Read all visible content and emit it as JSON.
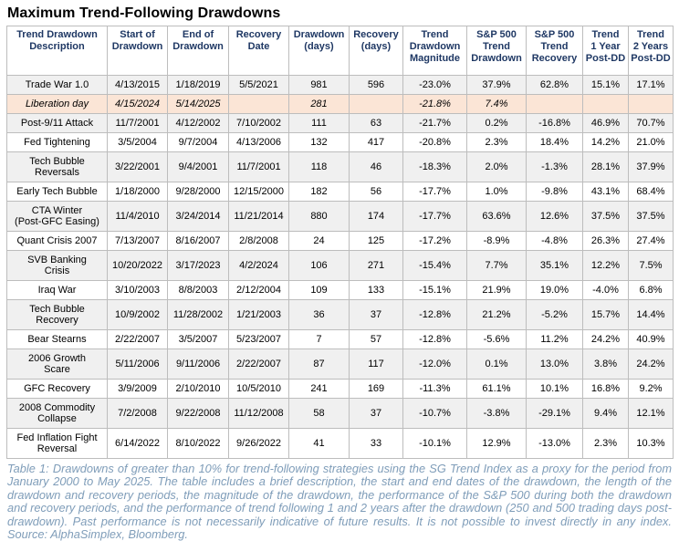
{
  "title": "Maximum Trend-Following Drawdowns",
  "chart_data": {
    "type": "table",
    "title": "Maximum Trend-Following Drawdowns",
    "columns": [
      "Trend Drawdown\nDescription",
      "Start of\nDrawdown",
      "End of\nDrawdown",
      "Recovery\nDate",
      "Drawdown\n(days)",
      "Recovery\n(days)",
      "Trend\nDrawdown\nMagnitude",
      "S&P 500\nTrend\nDrawdown",
      "S&P 500\nTrend\nRecovery",
      "Trend\n1 Year\nPost-DD",
      "Trend\n2 Years\nPost-DD"
    ],
    "rows": [
      {
        "variant": "gray",
        "italic": false,
        "cells": [
          "Trade War 1.0",
          "4/13/2015",
          "1/18/2019",
          "5/5/2021",
          "981",
          "596",
          "-23.0%",
          "37.9%",
          "62.8%",
          "15.1%",
          "17.1%"
        ]
      },
      {
        "variant": "highlight",
        "italic": true,
        "cells": [
          "Liberation day",
          "4/15/2024",
          "5/14/2025",
          "",
          "281",
          "",
          "-21.8%",
          "7.4%",
          "",
          "",
          ""
        ]
      },
      {
        "variant": "gray",
        "italic": false,
        "cells": [
          "Post-9/11 Attack",
          "11/7/2001",
          "4/12/2002",
          "7/10/2002",
          "111",
          "63",
          "-21.7%",
          "0.2%",
          "-16.8%",
          "46.9%",
          "70.7%"
        ]
      },
      {
        "variant": "white",
        "italic": false,
        "cells": [
          "Fed Tightening",
          "3/5/2004",
          "9/7/2004",
          "4/13/2006",
          "132",
          "417",
          "-20.8%",
          "2.3%",
          "18.4%",
          "14.2%",
          "21.0%"
        ]
      },
      {
        "variant": "gray",
        "italic": false,
        "cells": [
          "Tech Bubble\nReversals",
          "3/22/2001",
          "9/4/2001",
          "11/7/2001",
          "118",
          "46",
          "-18.3%",
          "2.0%",
          "-1.3%",
          "28.1%",
          "37.9%"
        ]
      },
      {
        "variant": "white",
        "italic": false,
        "cells": [
          "Early Tech Bubble",
          "1/18/2000",
          "9/28/2000",
          "12/15/2000",
          "182",
          "56",
          "-17.7%",
          "1.0%",
          "-9.8%",
          "43.1%",
          "68.4%"
        ]
      },
      {
        "variant": "gray",
        "italic": false,
        "cells": [
          "CTA Winter\n(Post-GFC Easing)",
          "11/4/2010",
          "3/24/2014",
          "11/21/2014",
          "880",
          "174",
          "-17.7%",
          "63.6%",
          "12.6%",
          "37.5%",
          "37.5%"
        ]
      },
      {
        "variant": "white",
        "italic": false,
        "cells": [
          "Quant Crisis 2007",
          "7/13/2007",
          "8/16/2007",
          "2/8/2008",
          "24",
          "125",
          "-17.2%",
          "-8.9%",
          "-4.8%",
          "26.3%",
          "27.4%"
        ]
      },
      {
        "variant": "gray",
        "italic": false,
        "cells": [
          "SVB Banking\nCrisis",
          "10/20/2022",
          "3/17/2023",
          "4/2/2024",
          "106",
          "271",
          "-15.4%",
          "7.7%",
          "35.1%",
          "12.2%",
          "7.5%"
        ]
      },
      {
        "variant": "white",
        "italic": false,
        "cells": [
          "Iraq War",
          "3/10/2003",
          "8/8/2003",
          "2/12/2004",
          "109",
          "133",
          "-15.1%",
          "21.9%",
          "19.0%",
          "-4.0%",
          "6.8%"
        ]
      },
      {
        "variant": "gray",
        "italic": false,
        "cells": [
          "Tech Bubble\nRecovery",
          "10/9/2002",
          "11/28/2002",
          "1/21/2003",
          "36",
          "37",
          "-12.8%",
          "21.2%",
          "-5.2%",
          "15.7%",
          "14.4%"
        ]
      },
      {
        "variant": "white",
        "italic": false,
        "cells": [
          "Bear Stearns",
          "2/22/2007",
          "3/5/2007",
          "5/23/2007",
          "7",
          "57",
          "-12.8%",
          "-5.6%",
          "11.2%",
          "24.2%",
          "40.9%"
        ]
      },
      {
        "variant": "gray",
        "italic": false,
        "cells": [
          "2006 Growth\nScare",
          "5/11/2006",
          "9/11/2006",
          "2/22/2007",
          "87",
          "117",
          "-12.0%",
          "0.1%",
          "13.0%",
          "3.8%",
          "24.2%"
        ]
      },
      {
        "variant": "white",
        "italic": false,
        "cells": [
          "GFC Recovery",
          "3/9/2009",
          "2/10/2010",
          "10/5/2010",
          "241",
          "169",
          "-11.3%",
          "61.1%",
          "10.1%",
          "16.8%",
          "9.2%"
        ]
      },
      {
        "variant": "gray",
        "italic": false,
        "cells": [
          "2008 Commodity\nCollapse",
          "7/2/2008",
          "9/22/2008",
          "11/12/2008",
          "58",
          "37",
          "-10.7%",
          "-3.8%",
          "-29.1%",
          "9.4%",
          "12.1%"
        ]
      },
      {
        "variant": "white",
        "italic": false,
        "cells": [
          "Fed Inflation Fight\nReversal",
          "6/14/2022",
          "8/10/2022",
          "9/26/2022",
          "41",
          "33",
          "-10.1%",
          "12.9%",
          "-13.0%",
          "2.3%",
          "10.3%"
        ]
      }
    ]
  },
  "footnote": "Table 1: Drawdowns of greater than 10% for trend-following strategies using the SG Trend Index as a proxy for the period from January 2000 to May 2025. The table includes a brief description, the start and end dates of the drawdown, the length of the drawdown and recovery periods, the magnitude of the drawdown, the performance of the S&P 500 during both the drawdown and recovery periods, and the performance of trend following 1 and 2 years after the drawdown (250 and 500 trading days post-drawdown). Past performance is not necessarily indicative of future results. It is not possible to invest directly in any index. Source: AlphaSimplex, Bloomberg.",
  "colors": {
    "header_text": "#1F3864",
    "row_gray": "#F0F0F0",
    "row_highlight": "#FBE5D6",
    "border": "#BDBDBD",
    "footnote_text": "#7F9DB9"
  }
}
